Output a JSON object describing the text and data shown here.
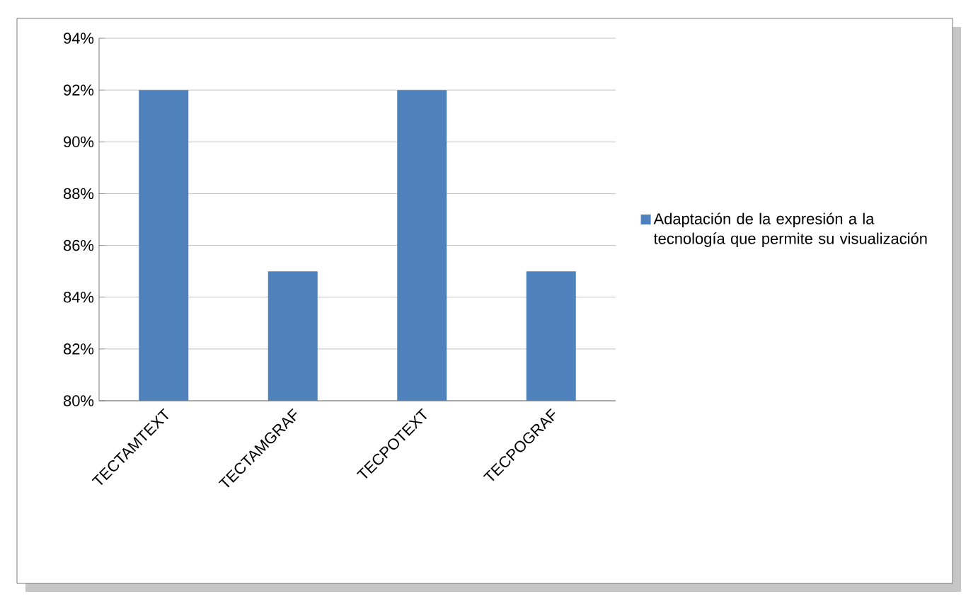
{
  "chart_data": {
    "type": "bar",
    "categories": [
      "TECTAMTEXT",
      "TECTAMGRAF",
      "TECPOTEXT",
      "TECPOGRAF"
    ],
    "series": [
      {
        "name": "Adaptación de la expresión a la tecnología que permite su visualización",
        "color": "#4f81bd",
        "values": [
          92,
          85,
          92,
          85
        ]
      }
    ],
    "ylim": [
      80,
      94
    ],
    "yticks": [
      {
        "value": 80,
        "label": "80%"
      },
      {
        "value": 82,
        "label": "82%"
      },
      {
        "value": 84,
        "label": "84%"
      },
      {
        "value": 86,
        "label": "86%"
      },
      {
        "value": 88,
        "label": "88%"
      },
      {
        "value": 90,
        "label": "90%"
      },
      {
        "value": 92,
        "label": "92%"
      },
      {
        "value": 94,
        "label": "94%"
      }
    ],
    "grid": "y",
    "legend": "right"
  }
}
